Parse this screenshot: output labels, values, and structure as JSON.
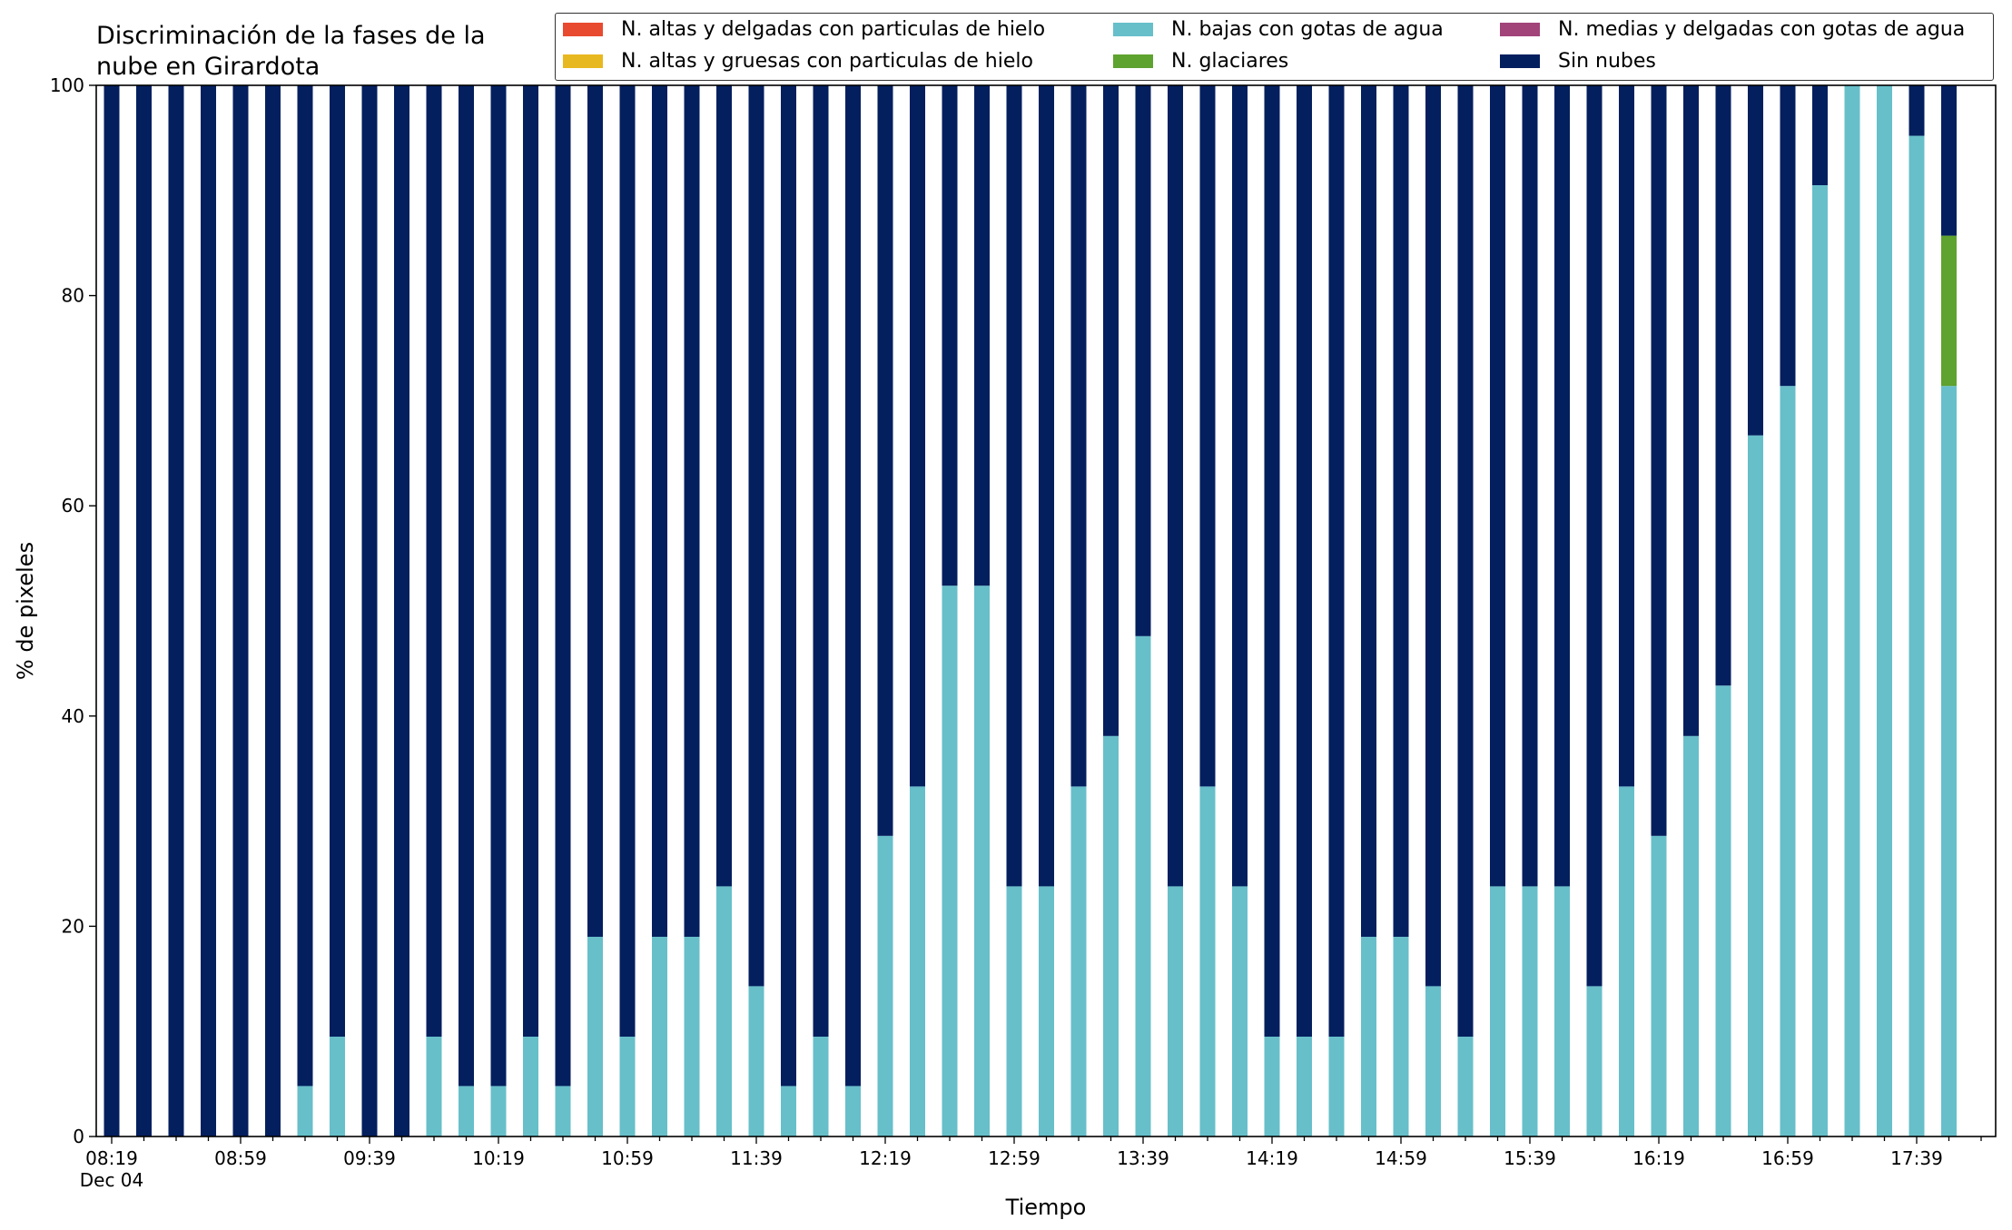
{
  "chart_data": {
    "type": "bar",
    "stacked": true,
    "title_lines": [
      "Discriminación de la fases de la",
      "nube en Girardota"
    ],
    "xlabel": "Tiempo",
    "ylabel": "% de pixeles",
    "ylim": [
      0,
      100
    ],
    "yticks": [
      0,
      20,
      40,
      60,
      80,
      100
    ],
    "xtick_labels": [
      "08:19",
      "08:59",
      "09:39",
      "10:19",
      "10:59",
      "11:39",
      "12:19",
      "12:59",
      "13:39",
      "14:19",
      "14:59",
      "15:39",
      "16:19",
      "16:59",
      "17:39"
    ],
    "xtick_sublabel": "Dec 04",
    "legend_location": "upper-right",
    "legend_ncol": 3,
    "categories": [
      "08:19",
      "08:29",
      "08:39",
      "08:49",
      "08:59",
      "09:09",
      "09:19",
      "09:29",
      "09:39",
      "09:49",
      "09:59",
      "10:09",
      "10:19",
      "10:29",
      "10:39",
      "10:49",
      "10:59",
      "11:09",
      "11:19",
      "11:29",
      "11:39",
      "11:49",
      "11:59",
      "12:09",
      "12:19",
      "12:29",
      "12:39",
      "12:49",
      "12:59",
      "13:09",
      "13:19",
      "13:29",
      "13:39",
      "13:49",
      "13:59",
      "14:09",
      "14:19",
      "14:29",
      "14:39",
      "14:49",
      "14:59",
      "15:09",
      "15:19",
      "15:29",
      "15:39",
      "15:49",
      "15:59",
      "16:09",
      "16:19",
      "16:29",
      "16:39",
      "16:49",
      "16:59",
      "17:09",
      "17:19",
      "17:29",
      "17:39",
      "17:49"
    ],
    "series": [
      {
        "name": "N. altas y delgadas con particulas de hielo",
        "color": "#e84a2f",
        "values": [
          0,
          0,
          0,
          0,
          0,
          0,
          0,
          0,
          0,
          0,
          0,
          0,
          0,
          0,
          0,
          0,
          0,
          0,
          0,
          0,
          0,
          0,
          0,
          0,
          0,
          0,
          0,
          0,
          0,
          0,
          0,
          0,
          0,
          0,
          0,
          0,
          0,
          0,
          0,
          0,
          0,
          0,
          0,
          0,
          0,
          0,
          0,
          0,
          0,
          0,
          0,
          0,
          0,
          0,
          0,
          0,
          0,
          0
        ]
      },
      {
        "name": "N. altas y gruesas con particulas de hielo",
        "color": "#e8b820",
        "values": [
          0,
          0,
          0,
          0,
          0,
          0,
          0,
          0,
          0,
          0,
          0,
          0,
          0,
          0,
          0,
          0,
          0,
          0,
          0,
          0,
          0,
          0,
          0,
          0,
          0,
          0,
          0,
          0,
          0,
          0,
          0,
          0,
          0,
          0,
          0,
          0,
          0,
          0,
          0,
          0,
          0,
          0,
          0,
          0,
          0,
          0,
          0,
          0,
          0,
          0,
          0,
          0,
          0,
          0,
          0,
          0,
          0,
          0
        ]
      },
      {
        "name": "N. bajas con gotas de agua",
        "color": "#67bfca",
        "values": [
          0,
          0,
          0,
          0,
          0,
          0,
          4.8,
          9.5,
          0,
          0,
          9.5,
          4.8,
          4.8,
          9.5,
          4.8,
          19,
          9.5,
          19,
          19,
          23.8,
          14.3,
          4.8,
          9.5,
          4.8,
          28.6,
          33.3,
          52.4,
          52.4,
          23.8,
          23.8,
          33.3,
          38.1,
          47.6,
          23.8,
          33.3,
          23.8,
          9.5,
          9.5,
          9.5,
          19,
          19,
          14.3,
          9.5,
          23.8,
          23.8,
          23.8,
          14.3,
          33.3,
          28.6,
          38.1,
          42.9,
          66.7,
          71.4,
          90.5,
          100,
          100,
          95.2,
          71.4
        ]
      },
      {
        "name": "N. glaciares",
        "color": "#5ea22f",
        "values": [
          0,
          0,
          0,
          0,
          0,
          0,
          0,
          0,
          0,
          0,
          0,
          0,
          0,
          0,
          0,
          0,
          0,
          0,
          0,
          0,
          0,
          0,
          0,
          0,
          0,
          0,
          0,
          0,
          0,
          0,
          0,
          0,
          0,
          0,
          0,
          0,
          0,
          0,
          0,
          0,
          0,
          0,
          0,
          0,
          0,
          0,
          0,
          0,
          0,
          0,
          0,
          0,
          0,
          0,
          0,
          0,
          0,
          14.3
        ]
      },
      {
        "name": "N. medias y delgadas con gotas de agua",
        "color": "#a2437a",
        "values": [
          0,
          0,
          0,
          0,
          0,
          0,
          0,
          0,
          0,
          0,
          0,
          0,
          0,
          0,
          0,
          0,
          0,
          0,
          0,
          0,
          0,
          0,
          0,
          0,
          0,
          0,
          0,
          0,
          0,
          0,
          0,
          0,
          0,
          0,
          0,
          0,
          0,
          0,
          0,
          0,
          0,
          0,
          0,
          0,
          0,
          0,
          0,
          0,
          0,
          0,
          0,
          0,
          0,
          0,
          0,
          0,
          0,
          0
        ]
      },
      {
        "name": "Sin nubes",
        "color": "#031f5e",
        "values": [
          100,
          100,
          100,
          100,
          100,
          100,
          95.2,
          90.5,
          100,
          100,
          90.5,
          95.2,
          95.2,
          90.5,
          95.2,
          81,
          90.5,
          81,
          81,
          76.2,
          85.7,
          95.2,
          90.5,
          95.2,
          71.4,
          66.7,
          47.6,
          47.6,
          76.2,
          76.2,
          66.7,
          61.9,
          52.4,
          76.2,
          66.7,
          76.2,
          90.5,
          90.5,
          90.5,
          81,
          81,
          85.7,
          90.5,
          76.2,
          76.2,
          76.2,
          85.7,
          66.7,
          71.4,
          61.9,
          57.1,
          33.3,
          28.6,
          9.5,
          0,
          0,
          4.8,
          14.3
        ]
      }
    ]
  }
}
